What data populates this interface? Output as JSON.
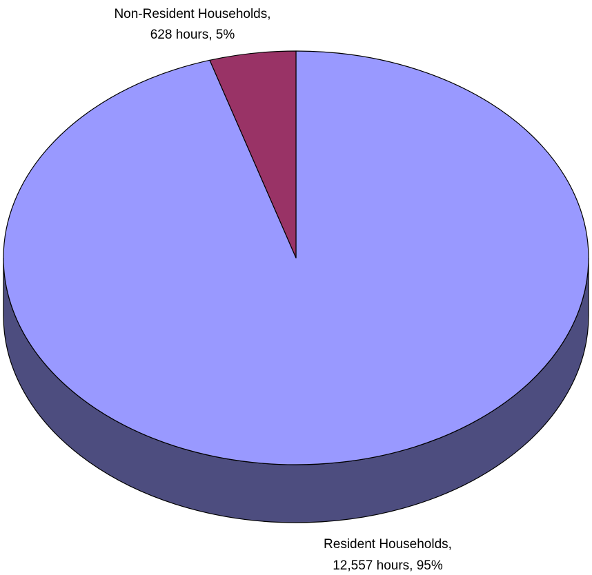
{
  "chart_data": {
    "type": "pie",
    "style": "3d",
    "slices": [
      {
        "name": "Resident Households",
        "value": 12557,
        "percent": 95,
        "label_line1": "Resident Households,",
        "label_line2": "12,557 hours, 95%",
        "color": "#9999ff",
        "side_color": "#4d4d7f"
      },
      {
        "name": "Non-Resident Households",
        "value": 628,
        "percent": 5,
        "label_line1": "Non-Resident Households,",
        "label_line2": "628 hours, 5%",
        "color": "#993366",
        "side_color": "#4d1a33"
      }
    ],
    "legend": "none"
  }
}
